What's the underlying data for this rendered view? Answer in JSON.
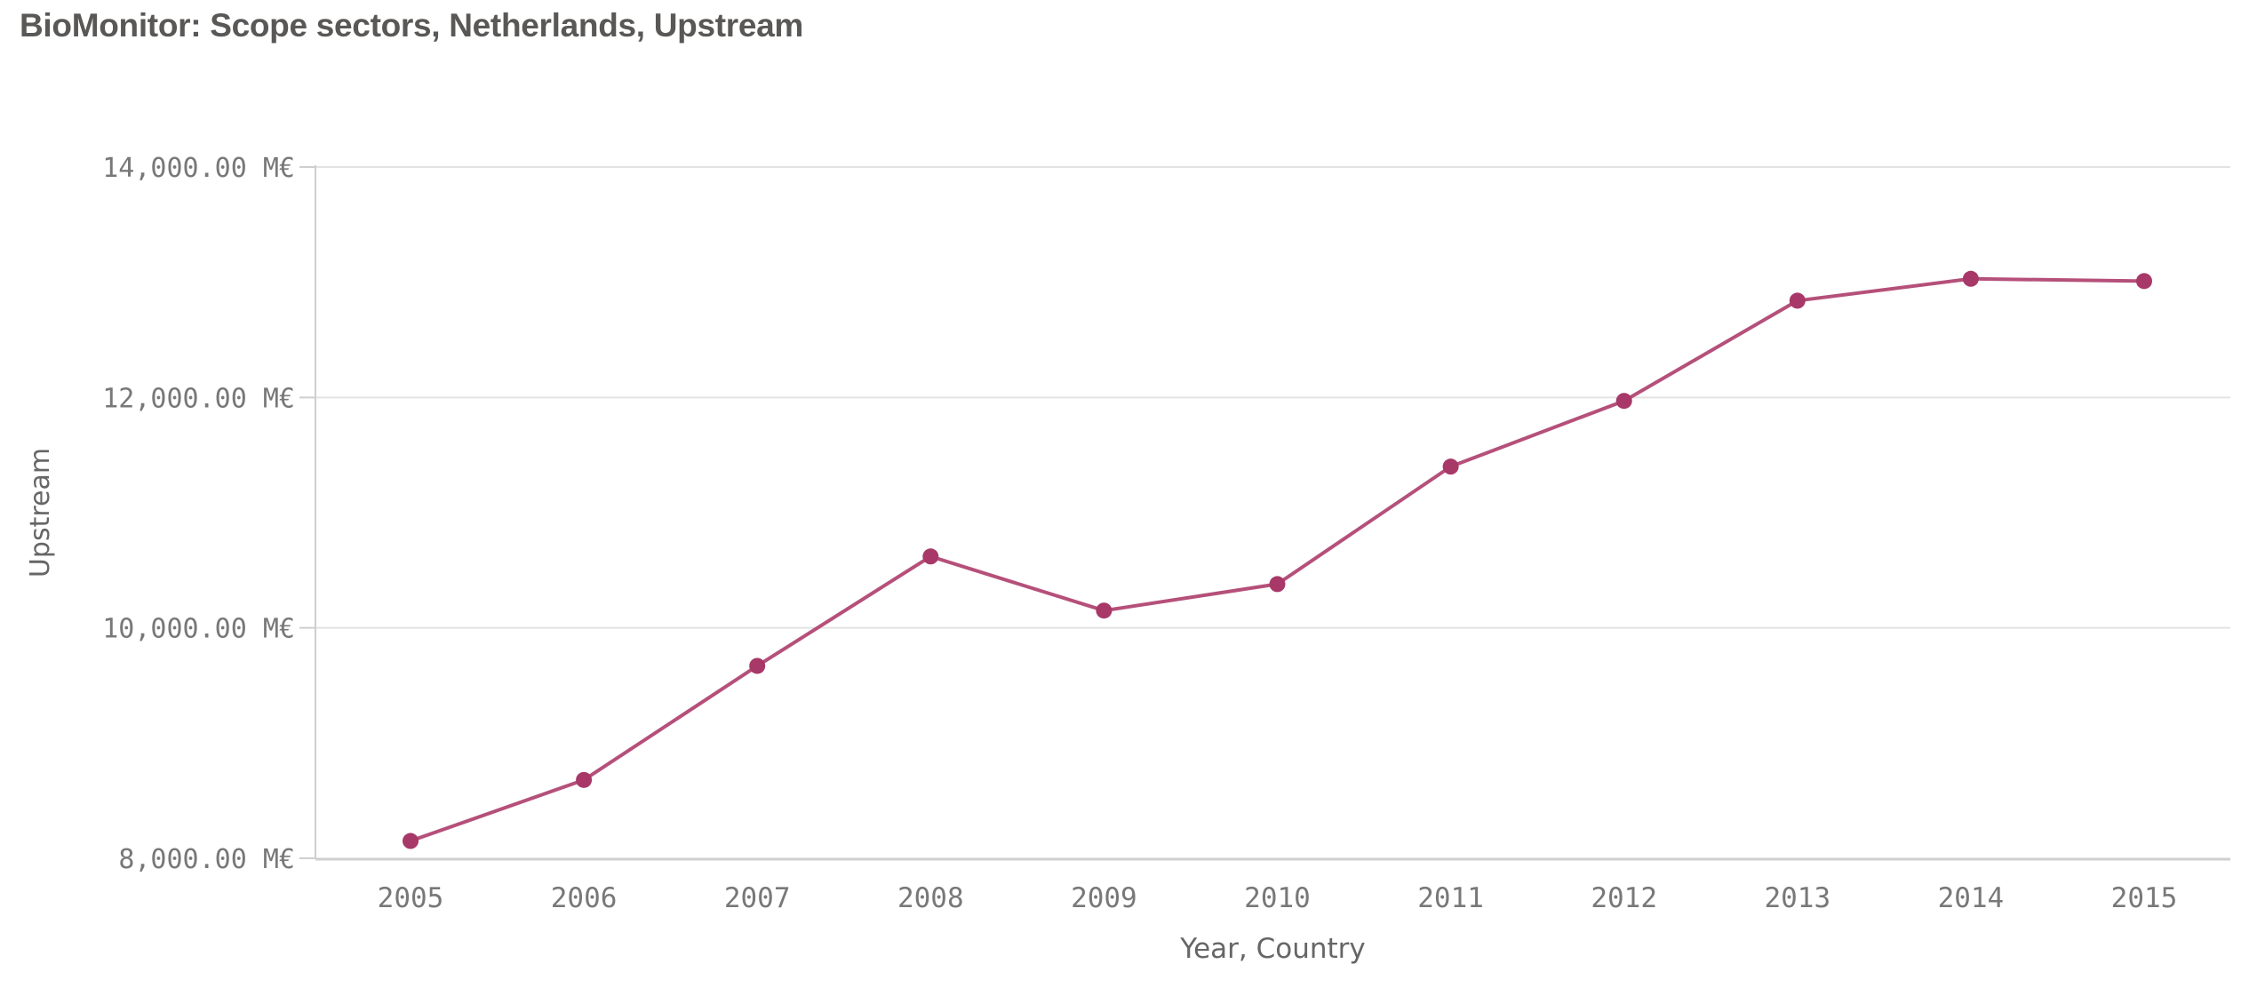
{
  "title": "BioMonitor: Scope sectors, Netherlands, Upstream",
  "chart_data": {
    "type": "line",
    "x": [
      2005,
      2006,
      2007,
      2008,
      2009,
      2010,
      2011,
      2012,
      2013,
      2014,
      2015
    ],
    "series": [
      {
        "name": "Upstream",
        "values": [
          8150,
          8680,
          9670,
          10620,
          10150,
          10380,
          11400,
          11970,
          12840,
          13030,
          13010
        ]
      }
    ],
    "xlabel": "Year, Country",
    "ylabel": "Upstream",
    "ylim": [
      8000,
      14000
    ],
    "ytick_step": 2000,
    "ytick_labels": [
      "8,000.00 M€",
      "10,000.00 M€",
      "12,000.00 M€",
      "14,000.00 M€"
    ],
    "grid": true,
    "legend_position": "none",
    "colors": {
      "line": "#b5507a",
      "point": "#a73868",
      "gridline": "#e3e3e3",
      "axis_line": "#cfcfcf",
      "tick_text": "#787878",
      "axis_title_text": "#666666",
      "title_text": "#5a5856"
    }
  }
}
